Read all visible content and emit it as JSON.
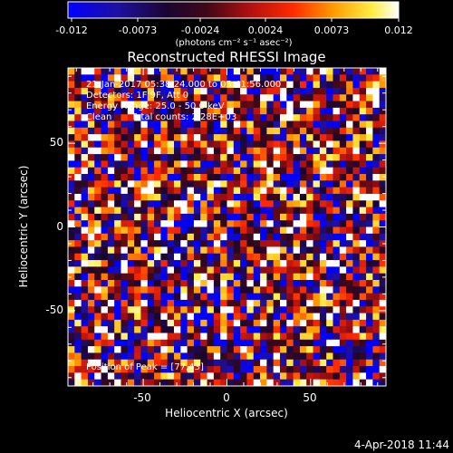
{
  "colorbar": {
    "ticks": [
      "-0.012",
      "-0.0073",
      "-0.0024",
      "0.0024",
      "0.0073",
      "0.012"
    ],
    "units_text": "(photons cm⁻² s⁻¹ asec⁻²)",
    "range": [
      -0.012,
      0.012
    ],
    "colormap": [
      "#0000ff",
      "#1a0a80",
      "#000000",
      "#6a0a2a",
      "#ff0000",
      "#ff9900",
      "#ffff44",
      "#ffffff"
    ]
  },
  "chart_data": {
    "type": "heatmap",
    "title": "Reconstructed RHESSI Image",
    "xlabel": "Heliocentric X (arcsec)",
    "ylabel": "Heliocentric Y (arcsec)",
    "xlim": [
      -95,
      95
    ],
    "ylim": [
      -95,
      95
    ],
    "x_ticks": [
      "-50",
      "0",
      "50"
    ],
    "y_ticks": [
      "50",
      "0",
      "-50"
    ],
    "grid_size": [
      48,
      48
    ],
    "value_range": [
      -0.012,
      0.012
    ],
    "annotations": {
      "time_range": "21-Jan-2017 05:38:24.000 to 05:41:56.000",
      "detectors": "Detectors: 1F 9F, Att 0",
      "energy": "Energy Range: 25.0 - 50.0 keV",
      "algorithm": "Clean",
      "counts": "Total counts: 2.28E+03",
      "peak": "Position of Peak = [77,43]"
    }
  },
  "footer": {
    "timestamp": "4-Apr-2018 11:44"
  }
}
